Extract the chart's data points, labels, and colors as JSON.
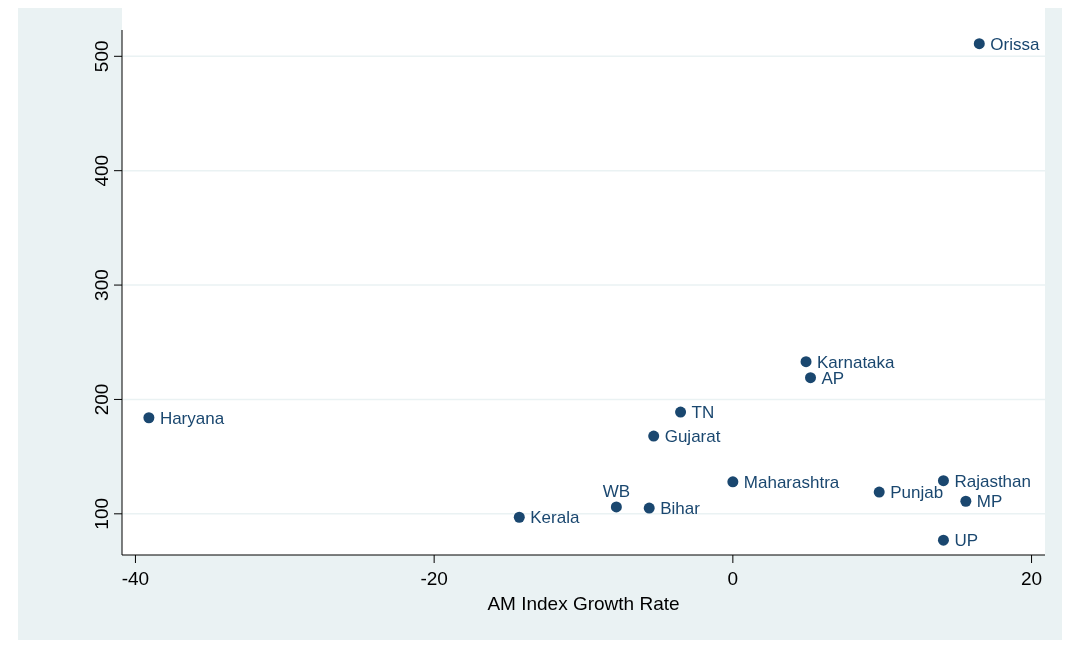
{
  "chart_data": {
    "type": "scatter",
    "xlabel": "AM Index Growth Rate",
    "x": [
      16.5,
      4.9,
      5.2,
      -39.1,
      -3.5,
      -5.3,
      0,
      14.1,
      9.8,
      15.6,
      -7.8,
      -5.6,
      -14.3,
      14.1
    ],
    "series": [
      {
        "color": "#1a476f",
        "values": [
          511,
          233,
          219,
          184,
          189,
          168,
          128,
          129,
          119,
          111,
          106,
          105,
          97,
          77
        ]
      }
    ],
    "value_labels": [
      "Orissa",
      "Karnataka",
      "AP",
      "Haryana",
      "TN",
      "Gujarat",
      "Maharashtra",
      "Rajasthan",
      "Punjab",
      "MP",
      "WB",
      "Bihar",
      "Kerala",
      "UP"
    ],
    "xlim": [
      -40.9,
      20.9
    ],
    "ylim": [
      64,
      523
    ],
    "xticks": [
      -40,
      -20,
      0,
      20
    ],
    "yticks": [
      100,
      200,
      300,
      400,
      500
    ],
    "grid": "y",
    "marker": "circle"
  }
}
